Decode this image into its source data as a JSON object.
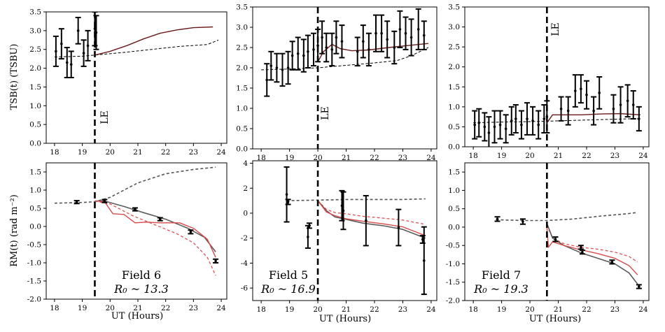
{
  "figure": {
    "xlabel": "UT (Hours)",
    "ylabel_top": "TSB(t) (TSBU)",
    "ylabel_bottom": "RM(t) (rad m⁻²)"
  },
  "colors": {
    "data": "#000000",
    "model_solid": "#6b1a1a",
    "baseline_dashed": "#000000",
    "rm_gray": "#5c5c5c",
    "rm_red": "#d94a4a",
    "rm_dashed_gray": "#555555",
    "rm_dashed_red": "#e05050"
  },
  "chart_data": [
    {
      "type": "line",
      "panel": "tsb-field6",
      "xlim": [
        17.7,
        24.2
      ],
      "ylim": [
        0,
        3.5
      ],
      "xticks": [
        18,
        19,
        20,
        21,
        22,
        23,
        24
      ],
      "yticks": [
        0.0,
        0.5,
        1.0,
        1.5,
        2.0,
        2.5,
        3.0,
        3.5
      ],
      "event_x": 19.45,
      "event_label": "LE",
      "observed": [
        {
          "x": 18.05,
          "y": 2.45,
          "err": 0.4
        },
        {
          "x": 18.25,
          "y": 2.65,
          "err": 0.4
        },
        {
          "x": 18.45,
          "y": 2.15,
          "err": 0.4
        },
        {
          "x": 18.6,
          "y": 2.1,
          "err": 0.35
        },
        {
          "x": 18.85,
          "y": 3.0,
          "err": 0.35
        },
        {
          "x": 19.05,
          "y": 2.4,
          "err": 0.35
        },
        {
          "x": 19.2,
          "y": 2.6,
          "err": 0.4
        },
        {
          "x": 19.45,
          "y": 3.05,
          "err": 0.45
        },
        {
          "x": 19.5,
          "y": 2.95,
          "err": 0.45
        }
      ],
      "model": {
        "x": [
          19.45,
          20.0,
          20.6,
          21.2,
          21.8,
          22.4,
          23.0,
          23.7
        ],
        "y": [
          2.35,
          2.45,
          2.6,
          2.78,
          2.93,
          3.02,
          3.08,
          3.1
        ]
      },
      "baseline": {
        "x": [
          18.0,
          19.0,
          19.45,
          20.5,
          21.5,
          22.5,
          23.5,
          23.9
        ],
        "y": [
          2.3,
          2.32,
          2.35,
          2.42,
          2.5,
          2.58,
          2.63,
          2.75
        ]
      }
    },
    {
      "type": "line",
      "panel": "tsb-field5",
      "xlim": [
        17.7,
        24.2
      ],
      "ylim": [
        0,
        3.5
      ],
      "xticks": [
        18,
        19,
        20,
        21,
        22,
        23,
        24
      ],
      "yticks": [
        0.0,
        0.5,
        1.0,
        1.5,
        2.0,
        2.5,
        3.0,
        3.5
      ],
      "event_x": 20.0,
      "event_label": "LE",
      "observed": [
        {
          "x": 18.2,
          "y": 1.7,
          "err": 0.4
        },
        {
          "x": 18.35,
          "y": 2.05,
          "err": 0.35
        },
        {
          "x": 18.55,
          "y": 2.0,
          "err": 0.35
        },
        {
          "x": 18.75,
          "y": 1.95,
          "err": 0.4
        },
        {
          "x": 18.95,
          "y": 2.0,
          "err": 0.4
        },
        {
          "x": 19.1,
          "y": 2.3,
          "err": 0.35
        },
        {
          "x": 19.3,
          "y": 2.35,
          "err": 0.4
        },
        {
          "x": 19.5,
          "y": 2.3,
          "err": 0.4
        },
        {
          "x": 19.65,
          "y": 2.4,
          "err": 0.4
        },
        {
          "x": 19.85,
          "y": 2.45,
          "err": 0.4
        },
        {
          "x": 20.0,
          "y": 2.55,
          "err": 0.4
        },
        {
          "x": 20.15,
          "y": 2.75,
          "err": 0.4
        },
        {
          "x": 20.3,
          "y": 2.5,
          "err": 0.35
        },
        {
          "x": 20.5,
          "y": 2.45,
          "err": 0.4
        },
        {
          "x": 20.65,
          "y": 2.75,
          "err": 0.4
        },
        {
          "x": 20.85,
          "y": 2.65,
          "err": 0.4
        },
        {
          "x": 21.4,
          "y": 2.4,
          "err": 0.35
        },
        {
          "x": 21.6,
          "y": 2.65,
          "err": 0.4
        },
        {
          "x": 21.8,
          "y": 2.45,
          "err": 0.4
        },
        {
          "x": 22.05,
          "y": 2.85,
          "err": 0.45
        },
        {
          "x": 22.25,
          "y": 2.85,
          "err": 0.45
        },
        {
          "x": 22.45,
          "y": 2.7,
          "err": 0.45
        },
        {
          "x": 22.7,
          "y": 2.5,
          "err": 0.4
        },
        {
          "x": 22.9,
          "y": 2.95,
          "err": 0.45
        },
        {
          "x": 23.1,
          "y": 2.85,
          "err": 0.4
        },
        {
          "x": 23.3,
          "y": 2.75,
          "err": 0.45
        },
        {
          "x": 23.55,
          "y": 2.95,
          "err": 0.5
        },
        {
          "x": 23.75,
          "y": 2.8,
          "err": 0.35
        }
      ],
      "model": {
        "x": [
          20.0,
          20.2,
          20.5,
          20.8,
          21.2,
          21.8,
          22.5,
          23.2,
          23.9
        ],
        "y": [
          2.15,
          2.4,
          2.58,
          2.47,
          2.42,
          2.44,
          2.5,
          2.55,
          2.6
        ]
      },
      "baseline": {
        "x": [
          18.0,
          19.0,
          20.0,
          21.0,
          22.0,
          22.8,
          23.3,
          23.9
        ],
        "y": [
          1.95,
          1.97,
          2.0,
          2.06,
          2.12,
          2.18,
          2.3,
          2.5
        ]
      }
    },
    {
      "type": "line",
      "panel": "tsb-field7",
      "xlim": [
        17.7,
        24.2
      ],
      "ylim": [
        0,
        3.5
      ],
      "xticks": [
        18,
        19,
        20,
        21,
        22,
        23,
        24
      ],
      "yticks": [
        0.0,
        0.5,
        1.0,
        1.5,
        2.0,
        2.5,
        3.0,
        3.5
      ],
      "event_x": 20.6,
      "event_label": "LE",
      "observed": [
        {
          "x": 18.05,
          "y": 0.55,
          "err": 0.35
        },
        {
          "x": 18.2,
          "y": 0.6,
          "err": 0.35
        },
        {
          "x": 18.4,
          "y": 0.5,
          "err": 0.35
        },
        {
          "x": 18.55,
          "y": 0.35,
          "err": 0.4
        },
        {
          "x": 18.75,
          "y": 0.5,
          "err": 0.4
        },
        {
          "x": 18.95,
          "y": 0.55,
          "err": 0.35
        },
        {
          "x": 19.15,
          "y": 0.45,
          "err": 0.35
        },
        {
          "x": 19.35,
          "y": 0.65,
          "err": 0.35
        },
        {
          "x": 19.5,
          "y": 0.7,
          "err": 0.35
        },
        {
          "x": 19.7,
          "y": 0.55,
          "err": 0.35
        },
        {
          "x": 19.9,
          "y": 0.7,
          "err": 0.4
        },
        {
          "x": 20.1,
          "y": 0.65,
          "err": 0.35
        },
        {
          "x": 20.3,
          "y": 0.55,
          "err": 0.35
        },
        {
          "x": 20.5,
          "y": 0.7,
          "err": 0.35
        },
        {
          "x": 20.6,
          "y": 0.75,
          "err": 0.4
        },
        {
          "x": 21.1,
          "y": 0.95,
          "err": 0.3
        },
        {
          "x": 21.35,
          "y": 0.9,
          "err": 0.35
        },
        {
          "x": 21.6,
          "y": 1.4,
          "err": 0.4
        },
        {
          "x": 21.8,
          "y": 1.45,
          "err": 0.35
        },
        {
          "x": 22.0,
          "y": 1.3,
          "err": 0.35
        },
        {
          "x": 22.25,
          "y": 0.9,
          "err": 0.35
        },
        {
          "x": 22.45,
          "y": 1.35,
          "err": 0.4
        },
        {
          "x": 22.95,
          "y": 0.95,
          "err": 0.35
        },
        {
          "x": 23.2,
          "y": 1.05,
          "err": 0.45
        },
        {
          "x": 23.45,
          "y": 1.15,
          "err": 0.4
        },
        {
          "x": 23.65,
          "y": 1.05,
          "err": 0.35
        },
        {
          "x": 23.85,
          "y": 0.7,
          "err": 0.3
        }
      ],
      "model": {
        "x": [
          20.6,
          20.8,
          21.2,
          21.8,
          22.5,
          23.2,
          23.9
        ],
        "y": [
          0.6,
          0.8,
          0.8,
          0.8,
          0.82,
          0.83,
          0.8
        ]
      },
      "baseline": {
        "x": [
          18.0,
          19.0,
          20.0,
          20.6,
          21.5,
          22.5,
          23.5,
          23.9
        ],
        "y": [
          0.6,
          0.62,
          0.63,
          0.64,
          0.66,
          0.68,
          0.7,
          0.7
        ]
      }
    },
    {
      "type": "line",
      "panel": "rm-field6",
      "xlim": [
        17.7,
        24.2
      ],
      "ylim": [
        -2.0,
        1.75
      ],
      "xticks": [
        18,
        19,
        20,
        21,
        22,
        23,
        24
      ],
      "yticks": [
        -2.0,
        -1.5,
        -1.0,
        -0.5,
        0.0,
        0.5,
        1.0,
        1.5
      ],
      "event_x": 19.45,
      "annotation_line1": "Field 6",
      "annotation_line2": "R₀ ~ 13.3",
      "observed": [
        {
          "x": 18.8,
          "y": 0.67,
          "err": 0.04
        },
        {
          "x": 19.8,
          "y": 0.7,
          "err": 0.04
        },
        {
          "x": 20.9,
          "y": 0.47,
          "err": 0.04
        },
        {
          "x": 21.8,
          "y": 0.2,
          "err": 0.04
        },
        {
          "x": 22.9,
          "y": -0.15,
          "err": 0.05
        },
        {
          "x": 23.8,
          "y": -0.95,
          "err": 0.05
        }
      ],
      "model_gray": {
        "x": [
          19.45,
          19.8,
          20.5,
          21.2,
          22.0,
          22.8,
          23.4,
          23.8
        ],
        "y": [
          0.7,
          0.7,
          0.55,
          0.38,
          0.2,
          -0.05,
          -0.3,
          -0.7
        ]
      },
      "model_red": {
        "x": [
          19.45,
          19.8,
          20.1,
          20.5,
          20.9,
          21.3,
          21.8,
          22.5,
          23.0,
          23.5,
          23.8
        ],
        "y": [
          0.7,
          0.68,
          0.35,
          0.33,
          0.1,
          0.12,
          0.1,
          0.1,
          -0.05,
          -0.35,
          -0.85
        ]
      },
      "model_red_dashed": {
        "x": [
          19.45,
          20.0,
          20.8,
          21.6,
          22.4,
          23.0,
          23.5,
          23.8
        ],
        "y": [
          0.7,
          0.62,
          0.3,
          0.05,
          -0.2,
          -0.45,
          -0.85,
          -1.35
        ]
      },
      "baseline": {
        "x": [
          18.0,
          19.0,
          19.45,
          20.0,
          21.0,
          22.0,
          23.0,
          23.8
        ],
        "y": [
          0.64,
          0.66,
          0.68,
          0.8,
          1.2,
          1.45,
          1.57,
          1.63
        ]
      }
    },
    {
      "type": "line",
      "panel": "rm-field5",
      "xlim": [
        17.7,
        24.2
      ],
      "ylim": [
        -7,
        4.2
      ],
      "xticks": [
        18,
        19,
        20,
        21,
        22,
        23,
        24
      ],
      "yticks": [
        -6,
        -4,
        -2,
        0,
        2,
        4
      ],
      "event_x": 20.0,
      "annotation_line1": "Field 5",
      "annotation_line2": "R₀ ~ 16.9",
      "observed": [
        {
          "x": 18.9,
          "y": 1.5,
          "err": 2.2
        },
        {
          "x": 18.95,
          "y": 0.9,
          "err": 0.2
        },
        {
          "x": 19.65,
          "y": -1.9,
          "err": 0.9
        },
        {
          "x": 19.7,
          "y": -1.0,
          "err": 0.2
        },
        {
          "x": 20.85,
          "y": 0.6,
          "err": 1.2
        },
        {
          "x": 20.9,
          "y": 0.2,
          "err": 1.5
        },
        {
          "x": 21.7,
          "y": -0.6,
          "err": 2.0
        },
        {
          "x": 22.85,
          "y": -1.15,
          "err": 1.45
        },
        {
          "x": 23.7,
          "y": -2.1,
          "err": 0.3
        },
        {
          "x": 23.75,
          "y": -3.8,
          "err": 2.7
        }
      ],
      "model_gray": {
        "x": [
          20.0,
          20.3,
          20.6,
          21.0,
          21.6,
          22.3,
          23.0,
          23.8
        ],
        "y": [
          1.0,
          0.2,
          -0.3,
          -0.5,
          -0.8,
          -1.0,
          -1.3,
          -2.0
        ]
      },
      "model_red": {
        "x": [
          20.0,
          20.3,
          20.6,
          21.0,
          21.6,
          22.3,
          23.0,
          23.8
        ],
        "y": [
          1.0,
          0.1,
          -0.2,
          -0.45,
          -0.65,
          -0.85,
          -1.1,
          -1.8
        ]
      },
      "model_red_dashed": {
        "x": [
          20.0,
          20.3,
          20.6,
          21.0,
          21.6,
          22.3,
          23.0,
          23.8
        ],
        "y": [
          1.0,
          0.3,
          0.05,
          -0.05,
          -0.25,
          -0.4,
          -0.55,
          -0.9
        ]
      },
      "baseline": {
        "x": [
          18.9,
          20.0,
          21.0,
          22.0,
          23.0,
          23.8
        ],
        "y": [
          1.0,
          1.05,
          1.1,
          1.1,
          1.1,
          1.15
        ]
      }
    },
    {
      "type": "line",
      "panel": "rm-field7",
      "xlim": [
        17.7,
        24.2
      ],
      "ylim": [
        -2.0,
        1.75
      ],
      "xticks": [
        18,
        19,
        20,
        21,
        22,
        23,
        24
      ],
      "yticks": [
        -2.0,
        -1.5,
        -1.0,
        -0.5,
        0.0,
        0.5,
        1.0,
        1.5
      ],
      "event_x": 20.6,
      "annotation_line1": "Field 7",
      "annotation_line2": "R₀ ~ 19.3",
      "observed": [
        {
          "x": 18.85,
          "y": 0.22,
          "err": 0.06
        },
        {
          "x": 19.75,
          "y": 0.15,
          "err": 0.07
        },
        {
          "x": 20.9,
          "y": -0.33,
          "err": 0.06
        },
        {
          "x": 21.8,
          "y": -0.55,
          "err": 0.05
        },
        {
          "x": 21.85,
          "y": -0.68,
          "err": 0.05
        },
        {
          "x": 22.9,
          "y": -0.95,
          "err": 0.05
        },
        {
          "x": 23.85,
          "y": -1.62,
          "err": 0.05
        }
      ],
      "model_gray": {
        "x": [
          20.6,
          20.8,
          21.2,
          21.8,
          22.4,
          23.0,
          23.5,
          23.8
        ],
        "y": [
          0.1,
          -0.3,
          -0.5,
          -0.7,
          -0.85,
          -1.0,
          -1.25,
          -1.55
        ]
      },
      "model_red": {
        "x": [
          20.6,
          20.65,
          20.8,
          21.2,
          21.8,
          22.4,
          23.0,
          23.5,
          23.8
        ],
        "y": [
          0.0,
          -0.55,
          -0.4,
          -0.5,
          -0.62,
          -0.72,
          -0.85,
          -1.05,
          -1.3
        ]
      },
      "model_red_dashed": {
        "x": [
          20.6,
          20.8,
          21.2,
          21.8,
          22.4,
          23.0,
          23.5,
          23.8
        ],
        "y": [
          0.05,
          -0.3,
          -0.45,
          -0.55,
          -0.6,
          -0.68,
          -0.8,
          -0.95
        ]
      },
      "baseline": {
        "x": [
          18.8,
          19.8,
          20.6,
          21.5,
          22.5,
          23.5,
          23.8
        ],
        "y": [
          0.2,
          0.18,
          0.18,
          0.22,
          0.3,
          0.37,
          0.4
        ]
      }
    }
  ]
}
